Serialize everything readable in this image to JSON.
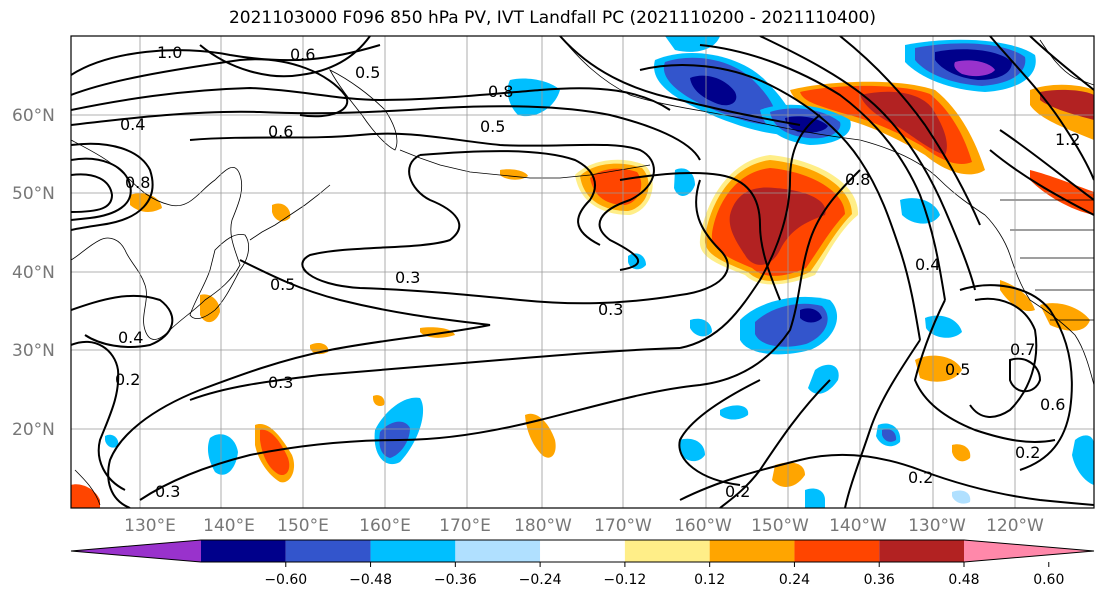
{
  "title": "2021103000 F096 850 hPa PV, IVT Landfall PC (2021110200 - 2021110400)",
  "map": {
    "lat_ticks": [
      "60°N",
      "50°N",
      "40°N",
      "30°N",
      "20°N"
    ],
    "lon_ticks": [
      "130°E",
      "140°E",
      "150°E",
      "160°E",
      "170°E",
      "180°W",
      "170°W",
      "160°W",
      "150°W",
      "140°W",
      "130°W",
      "120°W"
    ],
    "contour_labels": [
      "1.0",
      "0.6",
      "0.8",
      "0.5",
      "0.4",
      "0.6",
      "0.8",
      "0.5",
      "0.3",
      "0.5",
      "0.3",
      "0.4",
      "0.3",
      "0.2",
      "0.3",
      "0.2",
      "0.2",
      "0.2",
      "0.4",
      "1.2",
      "0.8",
      "0.6",
      "0.5",
      "0.7"
    ]
  },
  "colorbar": {
    "ticks": [
      "−0.60",
      "−0.48",
      "−0.36",
      "−0.24",
      "−0.12",
      "0.12",
      "0.24",
      "0.36",
      "0.48",
      "0.60"
    ],
    "colors": [
      "#9932cc",
      "#00008b",
      "#3355cc",
      "#00bfff",
      "#b0e0ff",
      "#ffffff",
      "#ffee88",
      "#ffa500",
      "#ff4500",
      "#b22222",
      "#ff88aa"
    ]
  },
  "shading_colors": {
    "purple": "#9932cc",
    "navy": "#00008b",
    "blue": "#3355cc",
    "cyan": "#00bfff",
    "lightblue": "#b0e0ff",
    "yellow": "#ffee88",
    "orange": "#ffa500",
    "redorange": "#ff4500",
    "darkred": "#b22222"
  }
}
